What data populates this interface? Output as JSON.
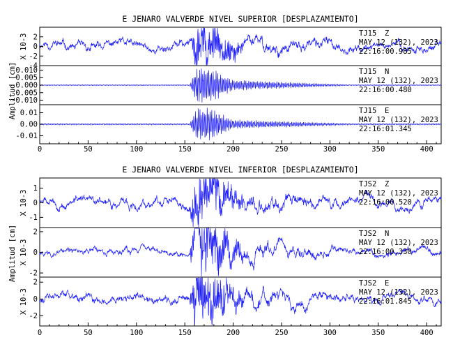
{
  "chart_data": [
    {
      "type": "line",
      "title": "E JENARO VALVERDE NIVEL SUPERIOR [DESPLAZAMIENTO]",
      "ylabel": "Amplitud [cm]",
      "xlim": [
        0,
        415
      ],
      "x_ticks": [
        "0",
        "50",
        "100",
        "150",
        "200",
        "250",
        "300",
        "350",
        "400"
      ],
      "line_color": "#1a1aff",
      "grid": false,
      "channels": [
        {
          "name": "TJ15 Z",
          "station_label": "TJ15",
          "component": "Z",
          "date": "MAY 12 (132), 2023",
          "time": "22:16:00.985",
          "scale": "X 10-3",
          "ylim": [
            -4,
            4
          ],
          "y_ticks": [
            "2",
            "0",
            "-2",
            "-4"
          ],
          "background_amp": 0.9,
          "peak_amp": 3.6,
          "coda_amp": 1.5,
          "style": "broadband"
        },
        {
          "name": "TJ15 N",
          "station_label": "TJ15",
          "component": "N",
          "date": "MAY 12 (132), 2023",
          "time": "22:16:00.480",
          "scale": "",
          "ylim": [
            -0.013,
            0.013
          ],
          "y_ticks": [
            "0.010",
            "0.005",
            "0.000",
            "-0.005",
            "-0.010"
          ],
          "background_amp": 0.0003,
          "peak_amp": 0.0115,
          "coda_amp": 0.0035,
          "style": "oscillatory"
        },
        {
          "name": "TJ15 E",
          "station_label": "TJ15",
          "component": "E",
          "date": "MAY 12 (132), 2023",
          "time": "22:16:01.345",
          "scale": "",
          "ylim": [
            -0.017,
            0.017
          ],
          "y_ticks": [
            "0.01",
            "0.00",
            "-0.01"
          ],
          "background_amp": 0.0006,
          "peak_amp": 0.014,
          "coda_amp": 0.004,
          "style": "oscillatory"
        }
      ]
    },
    {
      "type": "line",
      "title": "E JENARO VALVERDE NIVEL INFERIOR [DESPLAZAMIENTO]",
      "ylabel": "Amplitud [cm]",
      "xlim": [
        0,
        415
      ],
      "x_ticks": [
        "0",
        "50",
        "100",
        "150",
        "200",
        "250",
        "300",
        "350",
        "400"
      ],
      "line_color": "#1a1aff",
      "grid": false,
      "channels": [
        {
          "name": "TJS2 Z",
          "station_label": "TJS2",
          "component": "Z",
          "date": "MAY 12 (132), 2023",
          "time": "22:16:00.520",
          "scale": "X 10-3",
          "ylim": [
            -1.7,
            1.7
          ],
          "y_ticks": [
            "1",
            "0",
            "-1"
          ],
          "background_amp": 0.3,
          "peak_amp": 1.6,
          "coda_amp": 0.6,
          "style": "broadband"
        },
        {
          "name": "TJS2 N",
          "station_label": "TJS2",
          "component": "N",
          "date": "MAY 12 (132), 2023",
          "time": "22:16:00.330",
          "scale": "X 10-3",
          "ylim": [
            -2.4,
            2.4
          ],
          "y_ticks": [
            "2",
            "0",
            "-2"
          ],
          "background_amp": 0.3,
          "peak_amp": 2.2,
          "coda_amp": 0.9,
          "style": "broadband"
        },
        {
          "name": "TJS2 E",
          "station_label": "TJS2",
          "component": "E",
          "date": "MAY 12 (132), 2023",
          "time": "22:16:01.845",
          "scale": "X 10-3",
          "ylim": [
            -3.2,
            2.6
          ],
          "y_ticks": [
            "2",
            "0",
            "-2"
          ],
          "background_amp": 0.5,
          "peak_amp": 2.6,
          "coda_amp": 1.0,
          "style": "broadband"
        }
      ]
    }
  ]
}
